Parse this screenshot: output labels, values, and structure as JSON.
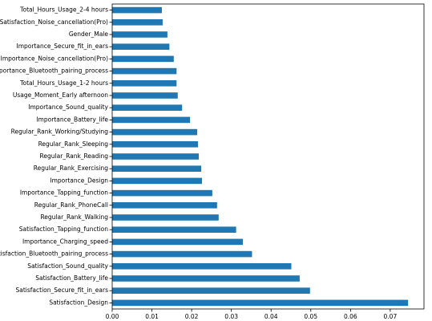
{
  "chart_data": {
    "type": "bar",
    "orientation": "horizontal",
    "categories": [
      "Satisfaction_Design",
      "Satisfaction_Secure_fit_in_ears",
      "Satisfaction_Battery_life",
      "Satisfaction_Sound_quality",
      "Satisfaction_Bluetooth_pairing_process",
      "Importance_Charging_speed",
      "Satisfaction_Tapping_function",
      "Regular_Rank_Walking",
      "Regular_Rank_PhoneCall",
      "Importance_Tapping_function",
      "Importance_Design",
      "Regular_Rank_Exercising",
      "Regular_Rank_Reading",
      "Regular_Rank_Sleeping",
      "Regular_Rank_Working/Studying",
      "Importance_Battery_life",
      "Importance_Sound_quality",
      "Usage_Moment_Early afternoon",
      "Total_Hours_Usage_1-2 hours",
      "Importance_Bluetooth_pairing_process",
      "Importance_Noise_cancellation(Pro)",
      "Importance_Secure_fit_in_ears",
      "Gender_Male",
      "Satisfaction_Noise_cancellation(Pro)",
      "Total_Hours_Usage_2-4 hours"
    ],
    "values": [
      0.0745,
      0.0498,
      0.0472,
      0.0451,
      0.0352,
      0.0329,
      0.0312,
      0.0268,
      0.0264,
      0.0252,
      0.0226,
      0.0224,
      0.0218,
      0.0216,
      0.0214,
      0.0196,
      0.0176,
      0.0165,
      0.0162,
      0.0162,
      0.0155,
      0.0144,
      0.0139,
      0.0127,
      0.0125
    ],
    "xlim": [
      0,
      0.0785
    ],
    "xticks": [
      "0.00",
      "0.01",
      "0.02",
      "0.03",
      "0.04",
      "0.05",
      "0.06",
      "0.07"
    ],
    "xtick_values": [
      0,
      0.01,
      0.02,
      0.03,
      0.04,
      0.05,
      0.06,
      0.07
    ],
    "bar_color": "#1f77b4",
    "title": "",
    "xlabel": "",
    "ylabel": "",
    "grid": false,
    "legend": "none"
  }
}
